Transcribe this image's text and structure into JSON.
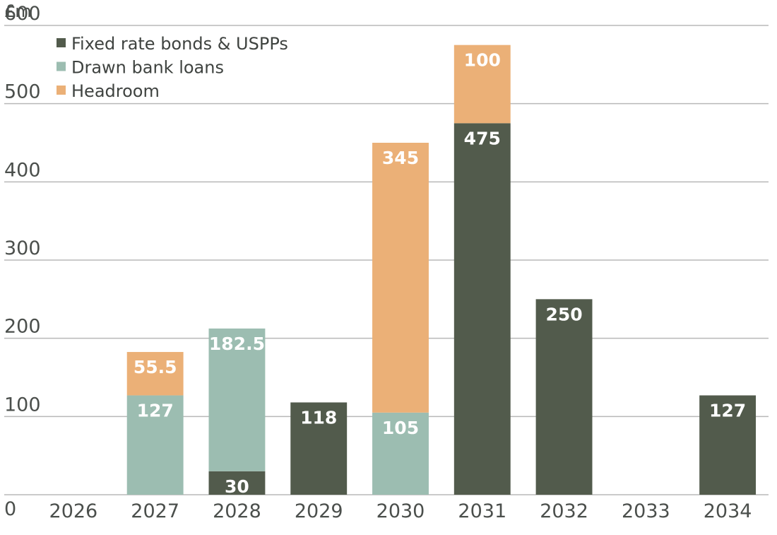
{
  "chart_data": {
    "type": "bar",
    "stacked": true,
    "unit_label": "£m",
    "title": "",
    "xlabel": "",
    "ylabel": "£m",
    "ylim": [
      0,
      600
    ],
    "yticks": [
      0,
      100,
      200,
      300,
      400,
      500,
      600
    ],
    "grid": true,
    "legend_position": "top-left",
    "categories": [
      "2026",
      "2027",
      "2028",
      "2029",
      "2030",
      "2031",
      "2032",
      "2033",
      "2034"
    ],
    "series": [
      {
        "name": "Fixed rate bonds & USPPs",
        "color": "#525b4c",
        "values": [
          0,
          0,
          30,
          118,
          0,
          475,
          250,
          0,
          127
        ],
        "labels": [
          "",
          "",
          "30",
          "118",
          "",
          "475",
          "250",
          "",
          "127"
        ]
      },
      {
        "name": "Drawn bank loans",
        "color": "#9cbdb1",
        "values": [
          0,
          127,
          182.5,
          0,
          105,
          0,
          0,
          0,
          0
        ],
        "labels": [
          "",
          "127",
          "182.5",
          "",
          "105",
          "",
          "",
          "",
          ""
        ]
      },
      {
        "name": "Headroom",
        "color": "#ebb077",
        "values": [
          0,
          55.5,
          0,
          0,
          345,
          100,
          0,
          0,
          0
        ],
        "labels": [
          "",
          "55.5",
          "",
          "",
          "345",
          "100",
          "",
          "",
          ""
        ]
      }
    ]
  }
}
